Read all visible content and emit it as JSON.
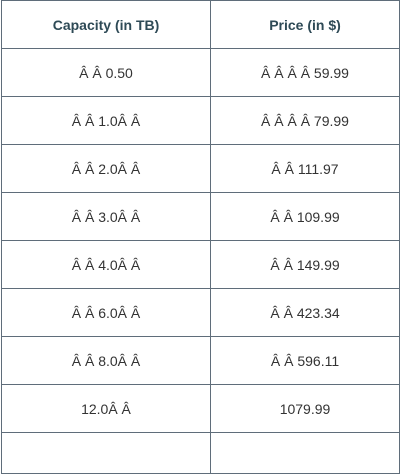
{
  "table": {
    "headers": [
      "Capacity (in TB)",
      "Price (in $)"
    ],
    "rows": [
      [
        "Â Â 0.50",
        "Â Â Â Â 59.99"
      ],
      [
        "Â Â 1.0Â Â",
        "Â Â Â Â 79.99"
      ],
      [
        "Â Â 2.0Â Â",
        "Â Â 111.97"
      ],
      [
        "Â Â 3.0Â Â",
        "Â Â 109.99"
      ],
      [
        "Â Â 4.0Â Â",
        "Â Â 149.99"
      ],
      [
        "Â Â 6.0Â Â",
        "Â Â 423.34"
      ],
      [
        "Â Â 8.0Â Â",
        "Â Â 596.11"
      ],
      [
        "12.0Â Â",
        "1079.99"
      ]
    ]
  }
}
